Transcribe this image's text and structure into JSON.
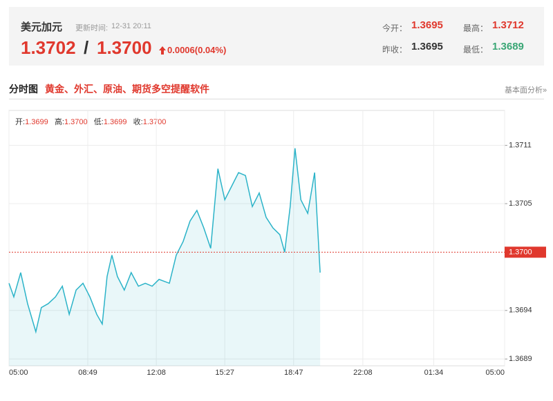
{
  "header": {
    "symbol": "美元加元",
    "update_label": "更新时间:",
    "update_time": "12-31 20:11",
    "price_bid": "1.3702",
    "separator": "/",
    "price_ask": "1.3700",
    "change": "0.0006(0.04%)",
    "stats": [
      {
        "label": "今开：",
        "value": "1.3695"
      },
      {
        "label": "最高：",
        "value": "1.3712"
      },
      {
        "label": "昨收：",
        "value": "1.3695"
      },
      {
        "label": "最低：",
        "value": "1.3689"
      }
    ]
  },
  "section": {
    "title": "分时图",
    "promo": "黄金、外汇、原油、期货多空提醒软件",
    "link": "基本面分析»"
  },
  "quote_row": [
    {
      "label": "开:",
      "value": "1.3699"
    },
    {
      "label": "高:",
      "value": "1.3700"
    },
    {
      "label": "低:",
      "value": "1.3699"
    },
    {
      "label": "收:",
      "value": "1.3700"
    }
  ],
  "chart_data": {
    "type": "line",
    "xlim": [
      0,
      1440
    ],
    "xticks": [
      {
        "value": 0,
        "label": "05:00"
      },
      {
        "value": 229,
        "label": "08:49"
      },
      {
        "value": 428,
        "label": "12:08"
      },
      {
        "value": 627,
        "label": "15:27"
      },
      {
        "value": 827,
        "label": "18:47"
      },
      {
        "value": 1028,
        "label": "22:08"
      },
      {
        "value": 1234,
        "label": "01:34"
      },
      {
        "value": 1440,
        "label": "05:00"
      }
    ],
    "ylim": [
      1.36883,
      1.37146
    ],
    "yticks": [
      1.3689,
      1.3694,
      1.3705,
      1.3711
    ],
    "grid": true,
    "current_price": {
      "value": 1.37,
      "label": "1.3700"
    },
    "series": [
      {
        "color": "#2bb3c8",
        "x": [
          0,
          14,
          34,
          54,
          78,
          94,
          114,
          135,
          155,
          175,
          195,
          215,
          235,
          255,
          271,
          285,
          299,
          315,
          335,
          355,
          376,
          396,
          416,
          436,
          466,
          486,
          506,
          526,
          546,
          566,
          586,
          607,
          627,
          647,
          667,
          687,
          707,
          727,
          747,
          767,
          787,
          801,
          817,
          831,
          848,
          868,
          888,
          904
        ],
        "values": [
          1.36968,
          1.36954,
          1.36979,
          1.36947,
          1.36918,
          1.36943,
          1.36947,
          1.36954,
          1.36965,
          1.36936,
          1.36961,
          1.36968,
          1.36954,
          1.36936,
          1.36926,
          1.36975,
          1.36997,
          1.36975,
          1.36961,
          1.36979,
          1.36965,
          1.36968,
          1.36965,
          1.36972,
          1.36968,
          1.36997,
          1.37011,
          1.37032,
          1.37043,
          1.37025,
          1.37004,
          1.37086,
          1.37054,
          1.37068,
          1.37082,
          1.37079,
          1.37047,
          1.37061,
          1.37036,
          1.37025,
          1.37018,
          1.37,
          1.37047,
          1.37107,
          1.37054,
          1.3704,
          1.37082,
          1.36979
        ]
      }
    ]
  }
}
